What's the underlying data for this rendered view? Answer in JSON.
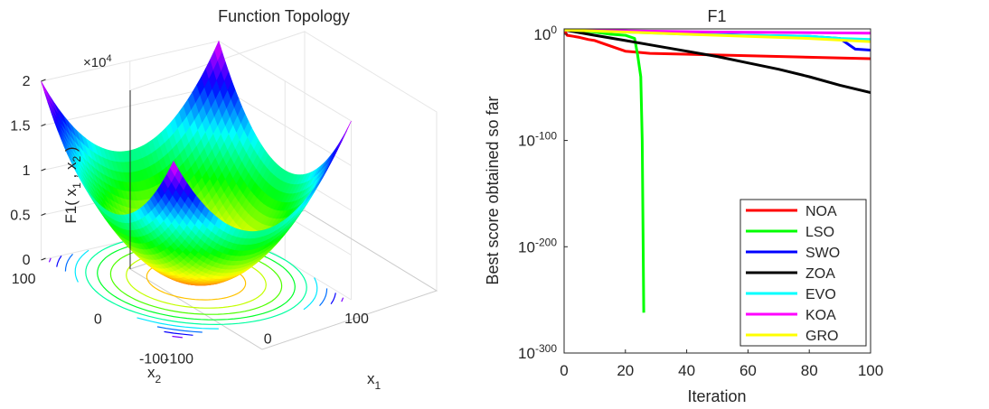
{
  "chart_data": [
    {
      "type": "surface3d",
      "title": "Function Topology",
      "zlabel": "F1( x₁ , x₂ )",
      "zlabel_parts": [
        "F1( x",
        "1",
        " , x",
        "2",
        " )"
      ],
      "xlabel_main": "x",
      "xlabel_sub": "1",
      "ylabel_main": "x",
      "ylabel_sub": "2",
      "z_multiplier_prefix": "×10",
      "z_multiplier_exp": "4",
      "z_ticks": [
        0,
        0.5,
        1,
        1.5,
        2
      ],
      "z_tick_labels": [
        "0",
        "0.5",
        "1",
        "1.5",
        "2"
      ],
      "x_ticks": [
        -100,
        0,
        100
      ],
      "x_tick_labels": [
        "-100",
        "0",
        "100"
      ],
      "y_ticks": [
        -100,
        0,
        100
      ],
      "y_tick_labels": [
        "-100",
        "0",
        "100"
      ],
      "xlim": [
        -100,
        100
      ],
      "ylim": [
        -100,
        100
      ],
      "zlim": [
        0,
        20000
      ],
      "function": "x1^2 + x2^2",
      "colormap": "hsv",
      "contour_levels": 10
    },
    {
      "type": "line",
      "yscale": "log",
      "title": "F1",
      "xlabel": "Iteration",
      "ylabel": "Best score obtained so far",
      "xlim": [
        0,
        100
      ],
      "ylim_exp": [
        -300,
        5
      ],
      "x_ticks": [
        0,
        20,
        40,
        60,
        80,
        100
      ],
      "x_tick_labels": [
        "0",
        "20",
        "40",
        "60",
        "80",
        "100"
      ],
      "y_ticks_exp": [
        0,
        -100,
        -200,
        -300
      ],
      "y_tick_base": "10",
      "y_tick_exps": [
        "0",
        "-100",
        "-200",
        "-300"
      ],
      "series": [
        {
          "name": "NOA",
          "color": "#ff0000",
          "x": [
            0,
            1,
            3,
            5,
            8,
            10,
            12,
            14,
            17,
            20,
            24,
            28,
            100
          ],
          "log10_y": [
            4,
            -1,
            -2,
            -3,
            -5,
            -6,
            -8,
            -10,
            -13,
            -16,
            -17,
            -18,
            -23
          ]
        },
        {
          "name": "LSO",
          "color": "#00ff00",
          "x": [
            0,
            5,
            10,
            15,
            20,
            23,
            24,
            25,
            25.5,
            26
          ],
          "log10_y": [
            4,
            3,
            2,
            0,
            -1,
            -4,
            -20,
            -40,
            -100,
            -262
          ]
        },
        {
          "name": "SWO",
          "color": "#0000ff",
          "x": [
            0,
            20,
            40,
            60,
            80,
            90,
            95,
            100
          ],
          "log10_y": [
            4,
            3,
            1,
            -1,
            -2,
            -4,
            -14,
            -15
          ]
        },
        {
          "name": "ZOA",
          "color": "#000000",
          "x": [
            0,
            10,
            20,
            30,
            40,
            50,
            60,
            70,
            80,
            90,
            100
          ],
          "log10_y": [
            4,
            -1,
            -6,
            -11,
            -16,
            -21,
            -27,
            -33,
            -40,
            -48,
            -55
          ]
        },
        {
          "name": "EVO",
          "color": "#00ffff",
          "x": [
            0,
            20,
            40,
            60,
            80,
            90,
            100
          ],
          "log10_y": [
            4,
            2,
            0,
            -1,
            -2,
            -4,
            -5
          ]
        },
        {
          "name": "KOA",
          "color": "#ff00ff",
          "x": [
            0,
            50,
            100
          ],
          "log10_y": [
            4,
            2,
            1
          ]
        },
        {
          "name": "GRO",
          "color": "#ffff00",
          "x": [
            0,
            20,
            40,
            60,
            80,
            100
          ],
          "log10_y": [
            4,
            2,
            0,
            -2,
            -4,
            -7
          ]
        }
      ],
      "legend": {
        "position": "bottom-right",
        "entries": [
          "NOA",
          "LSO",
          "SWO",
          "ZOA",
          "EVO",
          "KOA",
          "GRO"
        ]
      }
    }
  ]
}
